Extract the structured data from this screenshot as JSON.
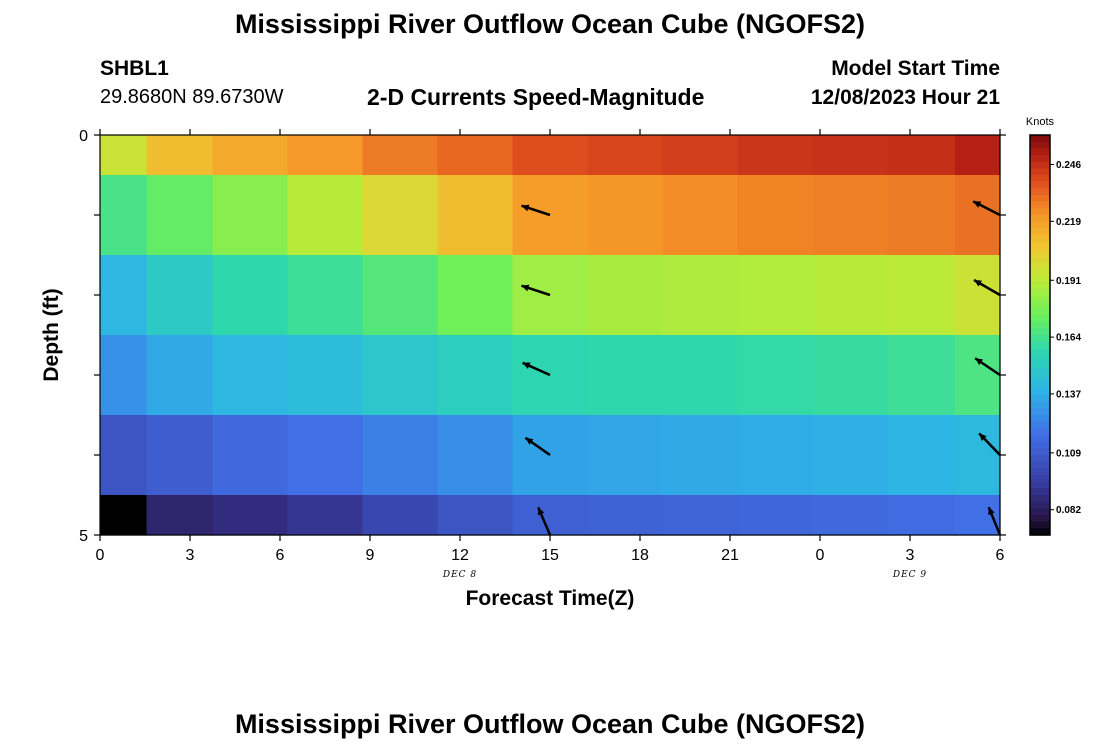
{
  "header": {
    "title": "Mississippi River Outflow Ocean Cube (NGOFS2)",
    "station": "SHBL1",
    "coords": "29.8680N  89.6730W",
    "subtitle": "2-D Currents Speed-Magnitude",
    "model_label": "Model Start Time",
    "model_time": "12/08/2023 Hour 21"
  },
  "footer": {
    "title": "Mississippi River Outflow Ocean Cube (NGOFS2)"
  },
  "colors": {
    "arrow": "#000000",
    "axis": "#000000"
  },
  "chart_data": {
    "type": "heatmap",
    "title": "2-D Currents Speed-Magnitude",
    "xlabel": "Forecast Time(Z)",
    "ylabel": "Depth (ft)",
    "x_ticks": [
      "0",
      "3",
      "6",
      "9",
      "12",
      "15",
      "18",
      "21",
      "0",
      "3",
      "6"
    ],
    "x_tick_hours": [
      0,
      3,
      6,
      9,
      12,
      15,
      18,
      21,
      24,
      27,
      30
    ],
    "x_range_hours": [
      0,
      30
    ],
    "date_labels": [
      {
        "text": "DEC 8",
        "hour": 12
      },
      {
        "text": "DEC 9",
        "hour": 27
      }
    ],
    "y_ticks": [
      "0",
      "5"
    ],
    "y_range_ft": [
      0,
      5
    ],
    "colorbar": {
      "label": "Knots",
      "ticks": [
        "0.246",
        "0.219",
        "0.191",
        "0.164",
        "0.137",
        "0.109",
        "0.082"
      ],
      "range": [
        0.07,
        0.26
      ]
    },
    "column_hours": [
      0.6,
      2.5,
      5,
      7.5,
      10,
      12.5,
      15,
      17.5,
      20,
      22.5,
      25,
      27.5,
      29.5
    ],
    "layer_depths_ft": [
      0,
      1,
      2,
      3,
      4,
      5
    ],
    "values": [
      [
        0.195,
        0.21,
        0.216,
        0.221,
        0.228,
        0.232,
        0.238,
        0.24,
        0.242,
        0.244,
        0.245,
        0.246,
        0.25
      ],
      [
        0.165,
        0.172,
        0.18,
        0.19,
        0.2,
        0.21,
        0.22,
        0.222,
        0.224,
        0.226,
        0.227,
        0.228,
        0.23
      ],
      [
        0.14,
        0.15,
        0.158,
        0.162,
        0.168,
        0.175,
        0.185,
        0.187,
        0.188,
        0.189,
        0.19,
        0.191,
        0.196
      ],
      [
        0.128,
        0.135,
        0.14,
        0.143,
        0.148,
        0.152,
        0.157,
        0.158,
        0.158,
        0.159,
        0.16,
        0.162,
        0.166
      ],
      [
        0.106,
        0.11,
        0.115,
        0.118,
        0.123,
        0.127,
        0.133,
        0.134,
        0.135,
        0.136,
        0.137,
        0.139,
        0.141
      ],
      [
        0.07,
        0.085,
        0.088,
        0.092,
        0.1,
        0.106,
        0.111,
        0.112,
        0.113,
        0.114,
        0.115,
        0.116,
        0.118
      ]
    ],
    "arrows": [
      {
        "hour": 15,
        "depth_ft": 1.0,
        "angle_deg": 162
      },
      {
        "hour": 15,
        "depth_ft": 2.0,
        "angle_deg": 162
      },
      {
        "hour": 15,
        "depth_ft": 3.0,
        "angle_deg": 156
      },
      {
        "hour": 15,
        "depth_ft": 4.0,
        "angle_deg": 145
      },
      {
        "hour": 15,
        "depth_ft": 5.0,
        "angle_deg": 113
      },
      {
        "hour": 30,
        "depth_ft": 1.0,
        "angle_deg": 153
      },
      {
        "hour": 30,
        "depth_ft": 2.0,
        "angle_deg": 150
      },
      {
        "hour": 30,
        "depth_ft": 3.0,
        "angle_deg": 146
      },
      {
        "hour": 30,
        "depth_ft": 4.0,
        "angle_deg": 134
      },
      {
        "hour": 30,
        "depth_ft": 5.0,
        "angle_deg": 112
      }
    ]
  }
}
